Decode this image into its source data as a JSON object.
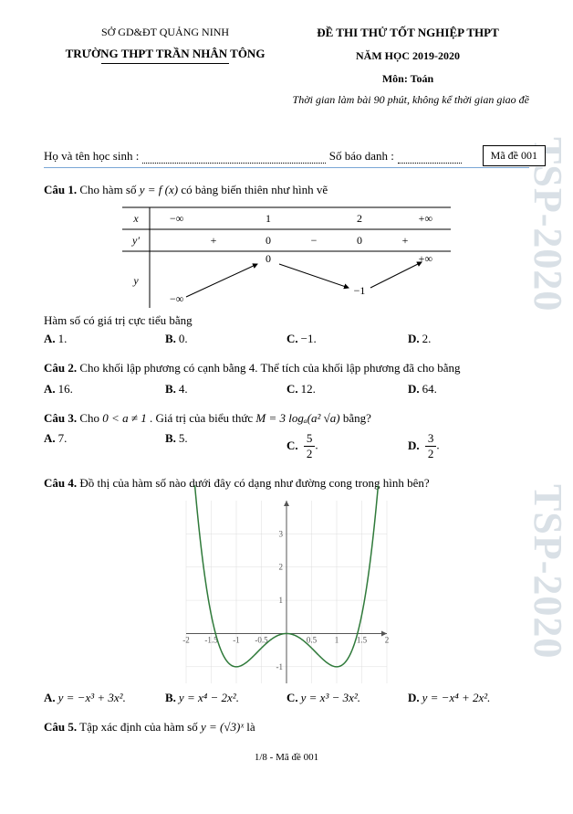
{
  "header": {
    "department": "SỞ GD&ĐT QUẢNG NINH",
    "school": "TRƯỜNG THPT TRẦN NHÂN TÔNG",
    "exam_title": "ĐỀ THI THỬ TỐT NGHIỆP THPT",
    "year": "NĂM HỌC 2019-2020",
    "subject": "Môn: Toán",
    "duration": "Thời gian làm bài  90 phút, không kể thời gian giao đề"
  },
  "student": {
    "name_label": "Họ và tên học sinh :",
    "id_label": "Số báo danh :",
    "code_label": "Mã đề 001"
  },
  "watermark": "TSP-2020",
  "q1": {
    "label": "Câu 1.",
    "text": " Cho hàm số ",
    "f": "y = f (x)",
    "text2": " có bảng biến thiên như hình vẽ",
    "conclusion": "Hàm số có giá trị cực tiểu bằng",
    "A": "1.",
    "B": "0.",
    "C": "−1.",
    "D": "2.",
    "table": {
      "x_vals": [
        "−∞",
        "1",
        "2",
        "+∞"
      ],
      "yprime": [
        "+",
        "0",
        "−",
        "0",
        "+"
      ],
      "y_top": "0",
      "y_left": "−∞",
      "y_mid": "−1",
      "y_right": "+∞"
    }
  },
  "q2": {
    "label": "Câu 2.",
    "text": " Cho khối lập phương có cạnh bằng 4. Thể tích của khối lập phương đã cho bằng",
    "A": "16.",
    "B": "4.",
    "C": "12.",
    "D": "64."
  },
  "q3": {
    "label": "Câu 3.",
    "text_a": " Cho ",
    "cond": "0 < a ≠ 1",
    "text_b": ". Giá trị của biểu thức ",
    "expr": "M = 3 logₐ(a² √a)",
    "text_c": " bằng?",
    "A": "7.",
    "B": "5.",
    "C_num": "5",
    "C_den": "2",
    "D_num": "3",
    "D_den": "2"
  },
  "q4": {
    "label": "Câu 4.",
    "text": " Đồ thị của hàm số nào dưới đây có dạng như đường cong trong hình bên?",
    "A": "y = −x³ + 3x².",
    "B": "y = x⁴ − 2x².",
    "C": "y = x³ − 3x².",
    "D": "y = −x⁴ + 2x².",
    "graph": {
      "xrange": [
        -2,
        2
      ],
      "yrange": [
        -1.5,
        4
      ],
      "xticks": [
        -2,
        -1.5,
        -1,
        -0.5,
        0.5,
        1,
        1.5,
        2
      ],
      "yticks": [
        -1,
        1,
        2,
        3
      ],
      "curve_color": "#2f7a3a",
      "axis_color": "#555555",
      "grid_color": "#dddddd"
    }
  },
  "q5": {
    "label": "Câu 5.",
    "text_a": " Tập xác định của hàm số ",
    "expr": "y = (√3)ˣ",
    "text_b": " là"
  },
  "footer": {
    "text": "1/8 - Mã đề 001"
  }
}
